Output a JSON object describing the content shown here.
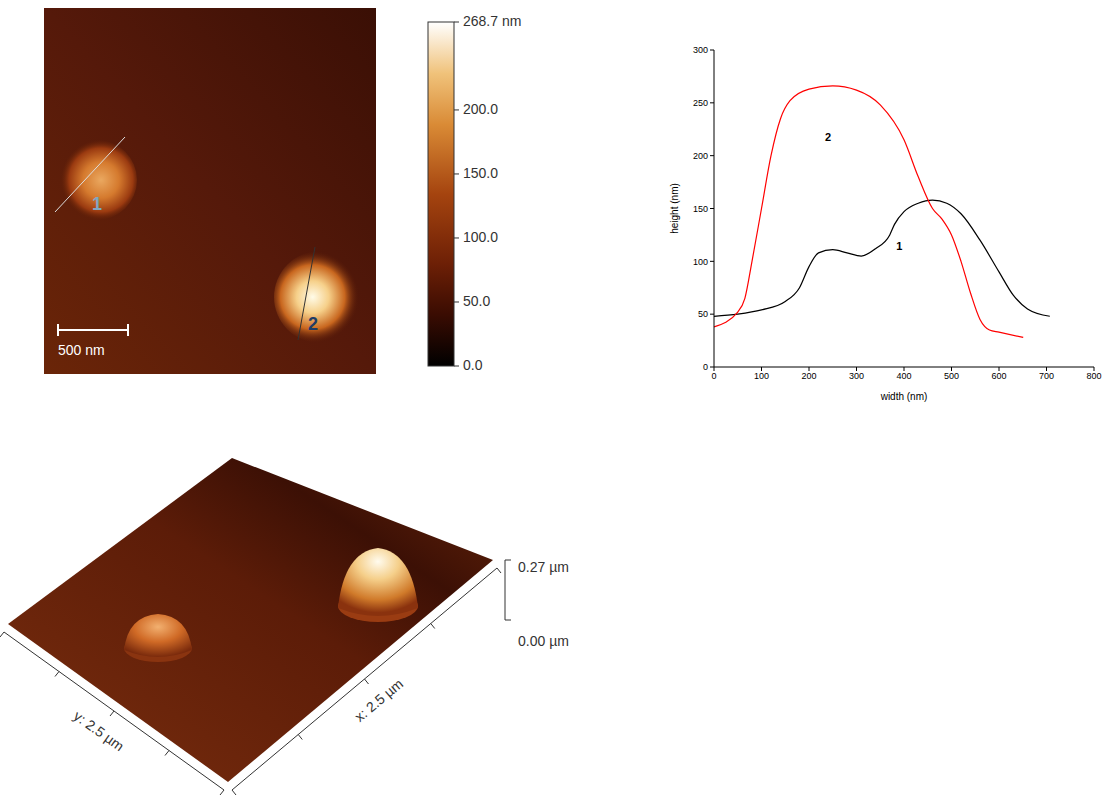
{
  "afm_image": {
    "scale_bar": "500 nm",
    "profiles": [
      {
        "label": "1"
      },
      {
        "label": "2"
      }
    ],
    "colorbar": {
      "range": [
        0,
        268.7
      ],
      "ticks": [
        {
          "value": 268.7,
          "label": "268.7 nm"
        },
        {
          "value": 200,
          "label": "200.0"
        },
        {
          "value": 150,
          "label": "150.0"
        },
        {
          "value": 100,
          "label": "100.0"
        },
        {
          "value": 50,
          "label": "50.0"
        },
        {
          "value": 0,
          "label": "0.0"
        }
      ]
    }
  },
  "chart_data": {
    "type": "line",
    "x_label": "width (nm)",
    "y_label": "height (nm)",
    "xlim": [
      0,
      800
    ],
    "ylim": [
      0,
      300
    ],
    "xticks": [
      0,
      100,
      200,
      300,
      400,
      500,
      600,
      700,
      800
    ],
    "yticks": [
      0,
      50,
      100,
      150,
      200,
      250,
      300
    ],
    "grid": false,
    "series": [
      {
        "name": "1",
        "color": "#000000",
        "x": [
          0,
          50,
          100,
          150,
          180,
          200,
          220,
          250,
          280,
          310,
          340,
          370,
          380,
          400,
          430,
          460,
          490,
          520,
          560,
          600,
          630,
          660,
          707
        ],
        "values": [
          48,
          50,
          54,
          62,
          75,
          95,
          108,
          111,
          108,
          105,
          112,
          125,
          135,
          147,
          155,
          158,
          155,
          145,
          120,
          90,
          68,
          55,
          48
        ]
      },
      {
        "name": "2",
        "color": "#ff0000",
        "x": [
          0,
          50,
          65,
          80,
          100,
          120,
          140,
          160,
          200,
          250,
          300,
          350,
          400,
          430,
          460,
          480,
          500,
          520,
          540,
          560,
          580,
          600,
          651
        ],
        "values": [
          38,
          52,
          65,
          100,
          150,
          200,
          235,
          252,
          263,
          266,
          262,
          248,
          215,
          180,
          150,
          140,
          125,
          100,
          70,
          45,
          35,
          33,
          28
        ]
      }
    ],
    "annotations": [
      {
        "text": "2",
        "x": 240,
        "y": 218
      },
      {
        "text": "1",
        "x": 390,
        "y": 114
      }
    ]
  },
  "afm_3d": {
    "zlim": [
      0,
      0.27
    ],
    "zticks": [
      {
        "value": 0.27,
        "label": "0.27 µm"
      },
      {
        "value": 0,
        "label": "0.00 µm"
      }
    ],
    "x_label": "x: 2.5 µm",
    "y_label": "y: 2.5 µm"
  }
}
